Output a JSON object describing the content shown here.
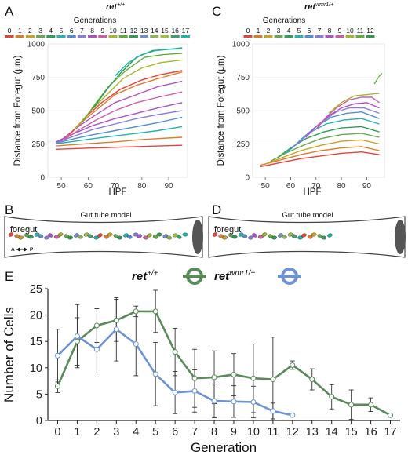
{
  "panels": {
    "A": {
      "letter": "A",
      "title": "ret",
      "title_sup": "+/+",
      "generations_label": "Generations",
      "generations": [
        "0",
        "1",
        "2",
        "3",
        "4",
        "5",
        "6",
        "7",
        "8",
        "9",
        "10",
        "11",
        "12",
        "13",
        "14",
        "15",
        "16",
        "17"
      ],
      "xlabel": "HPF",
      "ylabel": "Distance from Foregut (μm)"
    },
    "B": {
      "letter": "B",
      "model_title": "Gut tube model",
      "foregut_label": "foregut",
      "a_label": "A",
      "p_label": "P"
    },
    "C": {
      "letter": "C",
      "title": "ret",
      "title_sup": "wmr1/+",
      "generations_label": "Generations",
      "generations": [
        "0",
        "1",
        "2",
        "3",
        "4",
        "5",
        "6",
        "7",
        "8",
        "9",
        "10",
        "11",
        "12"
      ],
      "xlabel": "HPF",
      "ylabel": "Distance from Foregut (μm)"
    },
    "D": {
      "letter": "D",
      "model_title": "Gut tube model",
      "foregut_label": "foregut"
    },
    "E": {
      "letter": "E",
      "legend_wt": "ret",
      "legend_wt_sup": "+/+",
      "legend_mut": "ret",
      "legend_mut_sup": "wmr1/+",
      "xlabel": "Generation",
      "ylabel": "Number of Cells"
    }
  },
  "colors": {
    "generation_palette": [
      "#e8423a",
      "#e07b28",
      "#c9a21f",
      "#6aa84f",
      "#2e9e5b",
      "#23b3b3",
      "#4f8ed8",
      "#8a7be0",
      "#b04fc6",
      "#d35aa6",
      "#a7b52a",
      "#5fae3a",
      "#2f9a4e",
      "#6e8fc9",
      "#8ab34f",
      "#a0c03d",
      "#3ea06d",
      "#18b8a8"
    ],
    "wt_line": "#5a8a5a",
    "mut_line": "#6b93d6",
    "error_bar": "#333333",
    "gut_wall": "#444444",
    "gut_end": "#555555"
  },
  "chart_data": [
    {
      "panel": "A",
      "type": "line",
      "title": "ret+/+",
      "xlabel": "HPF",
      "ylabel": "Distance from Foregut (μm)",
      "xlim": [
        45,
        97
      ],
      "ylim": [
        0,
        1000
      ],
      "xticks": [
        50,
        60,
        70,
        80,
        90
      ],
      "yticks": [
        0,
        250,
        500,
        750,
        1000
      ],
      "series": [
        {
          "color": "#e8423a",
          "x": [
            48,
            55,
            62,
            70,
            78,
            86,
            95
          ],
          "y": [
            210,
            215,
            220,
            225,
            230,
            235,
            240
          ]
        },
        {
          "color": "#e07b28",
          "x": [
            48,
            55,
            62,
            70,
            78,
            86,
            95
          ],
          "y": [
            235,
            245,
            255,
            265,
            280,
            290,
            300
          ]
        },
        {
          "color": "#23b3b3",
          "x": [
            48,
            55,
            62,
            70,
            78,
            86,
            95
          ],
          "y": [
            250,
            270,
            290,
            310,
            330,
            350,
            380
          ]
        },
        {
          "color": "#4f8ed8",
          "x": [
            48,
            55,
            62,
            70,
            78,
            86,
            95
          ],
          "y": [
            255,
            290,
            320,
            350,
            380,
            410,
            450
          ]
        },
        {
          "color": "#8a7be0",
          "x": [
            48,
            55,
            62,
            70,
            78,
            86,
            95
          ],
          "y": [
            260,
            310,
            360,
            400,
            440,
            470,
            500
          ]
        },
        {
          "color": "#b04fc6",
          "x": [
            48,
            55,
            62,
            70,
            78,
            86,
            95
          ],
          "y": [
            265,
            330,
            390,
            440,
            480,
            520,
            560
          ]
        },
        {
          "color": "#d35aa6",
          "x": [
            50,
            57,
            63,
            70,
            78,
            86,
            95
          ],
          "y": [
            270,
            360,
            430,
            500,
            560,
            600,
            640
          ]
        },
        {
          "color": "#b04fc6",
          "x": [
            50,
            57,
            63,
            70,
            78,
            86,
            95
          ],
          "y": [
            280,
            390,
            470,
            560,
            620,
            680,
            720
          ]
        },
        {
          "color": "#e07b28",
          "x": [
            52,
            58,
            64,
            70,
            78,
            86,
            95
          ],
          "y": [
            300,
            420,
            520,
            620,
            690,
            740,
            790
          ]
        },
        {
          "color": "#e8423a",
          "x": [
            53,
            59,
            65,
            72,
            80,
            87,
            95
          ],
          "y": [
            320,
            450,
            560,
            660,
            730,
            770,
            800
          ]
        },
        {
          "color": "#a7b52a",
          "x": [
            55,
            61,
            67,
            73,
            80,
            87,
            95
          ],
          "y": [
            360,
            500,
            620,
            740,
            820,
            860,
            880
          ]
        },
        {
          "color": "#5fae3a",
          "x": [
            58,
            63,
            68,
            74,
            81,
            88,
            95
          ],
          "y": [
            420,
            560,
            690,
            800,
            900,
            920,
            930
          ]
        },
        {
          "color": "#2f9a4e",
          "x": [
            62,
            67,
            72,
            78,
            84,
            90,
            95
          ],
          "y": [
            520,
            660,
            780,
            900,
            950,
            960,
            970
          ]
        },
        {
          "color": "#18b8a8",
          "x": [
            70,
            75,
            80,
            85,
            90,
            95
          ],
          "y": [
            760,
            860,
            920,
            950,
            960,
            965
          ]
        }
      ]
    },
    {
      "panel": "C",
      "type": "line",
      "title": "retwmr1/+",
      "xlabel": "HPF",
      "ylabel": "Distance from Foregut (μm)",
      "xlim": [
        45,
        97
      ],
      "ylim": [
        0,
        1000
      ],
      "xticks": [
        50,
        60,
        70,
        80,
        90
      ],
      "yticks": [
        0,
        250,
        500,
        750,
        1000
      ],
      "series": [
        {
          "color": "#e8423a",
          "x": [
            48,
            56,
            64,
            72,
            80,
            88,
            95
          ],
          "y": [
            80,
            110,
            140,
            160,
            180,
            190,
            170
          ]
        },
        {
          "color": "#e07b28",
          "x": [
            48,
            56,
            64,
            72,
            80,
            88,
            95
          ],
          "y": [
            90,
            130,
            170,
            200,
            220,
            230,
            200
          ]
        },
        {
          "color": "#c9a21f",
          "x": [
            50,
            57,
            64,
            72,
            80,
            88,
            95
          ],
          "y": [
            100,
            150,
            200,
            240,
            270,
            280,
            250
          ]
        },
        {
          "color": "#6aa84f",
          "x": [
            52,
            58,
            65,
            72,
            80,
            88,
            95
          ],
          "y": [
            120,
            180,
            240,
            290,
            320,
            330,
            300
          ]
        },
        {
          "color": "#2e9e5b",
          "x": [
            55,
            60,
            66,
            73,
            80,
            88,
            95
          ],
          "y": [
            150,
            220,
            290,
            340,
            370,
            380,
            340
          ]
        },
        {
          "color": "#23b3b3",
          "x": [
            58,
            63,
            68,
            74,
            81,
            88,
            95
          ],
          "y": [
            180,
            260,
            340,
            400,
            430,
            440,
            400
          ]
        },
        {
          "color": "#4f8ed8",
          "x": [
            60,
            65,
            70,
            76,
            82,
            88,
            95
          ],
          "y": [
            210,
            300,
            380,
            450,
            480,
            490,
            440
          ]
        },
        {
          "color": "#8a7be0",
          "x": [
            62,
            67,
            72,
            78,
            83,
            89,
            95
          ],
          "y": [
            240,
            330,
            410,
            490,
            520,
            520,
            480
          ]
        },
        {
          "color": "#b04fc6",
          "x": [
            66,
            70,
            75,
            80,
            85,
            90,
            95
          ],
          "y": [
            300,
            380,
            460,
            520,
            550,
            560,
            520
          ]
        },
        {
          "color": "#d35aa6",
          "x": [
            70,
            74,
            78,
            83,
            88,
            92,
            95
          ],
          "y": [
            360,
            450,
            520,
            580,
            600,
            600,
            560
          ]
        },
        {
          "color": "#a7b52a",
          "x": [
            75,
            80,
            85,
            90,
            95
          ],
          "y": [
            480,
            560,
            610,
            620,
            630
          ]
        },
        {
          "color": "#5fae3a",
          "x": [
            93,
            94,
            95,
            96
          ],
          "y": [
            700,
            730,
            760,
            780
          ]
        }
      ]
    },
    {
      "panel": "E",
      "type": "line",
      "xlabel": "Generation",
      "ylabel": "Number of Cells",
      "xlim": [
        -0.5,
        17.5
      ],
      "ylim": [
        0,
        25
      ],
      "xticks": [
        0,
        1,
        2,
        3,
        4,
        5,
        6,
        7,
        8,
        9,
        10,
        11,
        12,
        13,
        14,
        15,
        16,
        17
      ],
      "yticks": [
        0,
        5,
        10,
        15,
        20,
        25
      ],
      "series": [
        {
          "name": "ret+/+",
          "color": "#5a8a5a",
          "x": [
            0,
            1,
            2,
            3,
            4,
            5,
            6,
            7,
            8,
            9,
            10,
            11,
            12,
            13,
            14,
            15,
            16,
            17
          ],
          "y": [
            6.5,
            15.0,
            18.0,
            19.0,
            20.7,
            20.7,
            13.0,
            8.0,
            8.2,
            8.7,
            8.0,
            7.8,
            10.5,
            7.8,
            4.5,
            3.0,
            3.0,
            1.0
          ],
          "err": [
            1.2,
            4.5,
            3.2,
            4.0,
            1.0,
            4.0,
            4.5,
            5.5,
            5.0,
            4.0,
            6.5,
            8.0,
            0.8,
            2.0,
            2.3,
            2.8,
            1.3,
            0.2
          ]
        },
        {
          "name": "retwmr1/+",
          "color": "#6b93d6",
          "x": [
            0,
            1,
            2,
            3,
            4,
            5,
            6,
            7,
            8,
            9,
            10,
            11,
            12
          ],
          "y": [
            12.3,
            16.0,
            13.5,
            17.3,
            14.5,
            8.8,
            5.3,
            5.6,
            3.7,
            3.6,
            3.5,
            1.8,
            1.0
          ],
          "err": [
            5.0,
            6.0,
            4.5,
            6.0,
            6.0,
            6.0,
            4.0,
            4.0,
            3.2,
            3.0,
            3.0,
            1.5,
            0.2
          ]
        }
      ]
    }
  ]
}
